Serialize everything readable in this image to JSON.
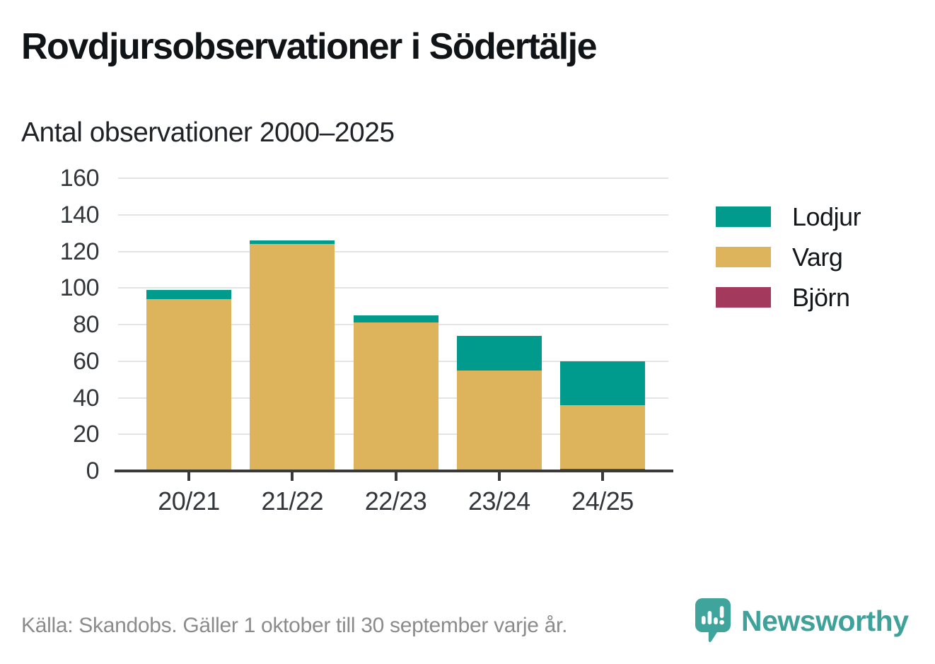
{
  "chart_data": {
    "type": "bar",
    "stacked": true,
    "title": "Rovdjursobservationer i Södertälje",
    "subtitle": "Antal observationer 2000–2025",
    "categories": [
      "20/21",
      "21/22",
      "22/23",
      "23/24",
      "24/25"
    ],
    "series": [
      {
        "name": "Lodjur",
        "color": "#009b8d",
        "values": [
          5,
          2,
          4,
          19,
          24
        ]
      },
      {
        "name": "Varg",
        "color": "#ddb45c",
        "values": [
          94,
          124,
          81,
          55,
          35
        ]
      },
      {
        "name": "Björn",
        "color": "#a33a5e",
        "values": [
          0,
          0,
          0,
          0,
          1
        ]
      }
    ],
    "totals": [
      99,
      126,
      85,
      74,
      60
    ],
    "xlabel": "",
    "ylabel": "",
    "ylim": [
      0,
      160
    ],
    "ytick_step": 20,
    "grid": true,
    "legend_position": "right"
  },
  "footer": {
    "source": "Källa: Skandobs. Gäller 1 oktober till 30 september varje år.",
    "brand": "Newsworthy"
  },
  "colors": {
    "axis": "#3a3a3a",
    "grid": "#e4e4e4",
    "brand_teal": "#3fa29a"
  }
}
